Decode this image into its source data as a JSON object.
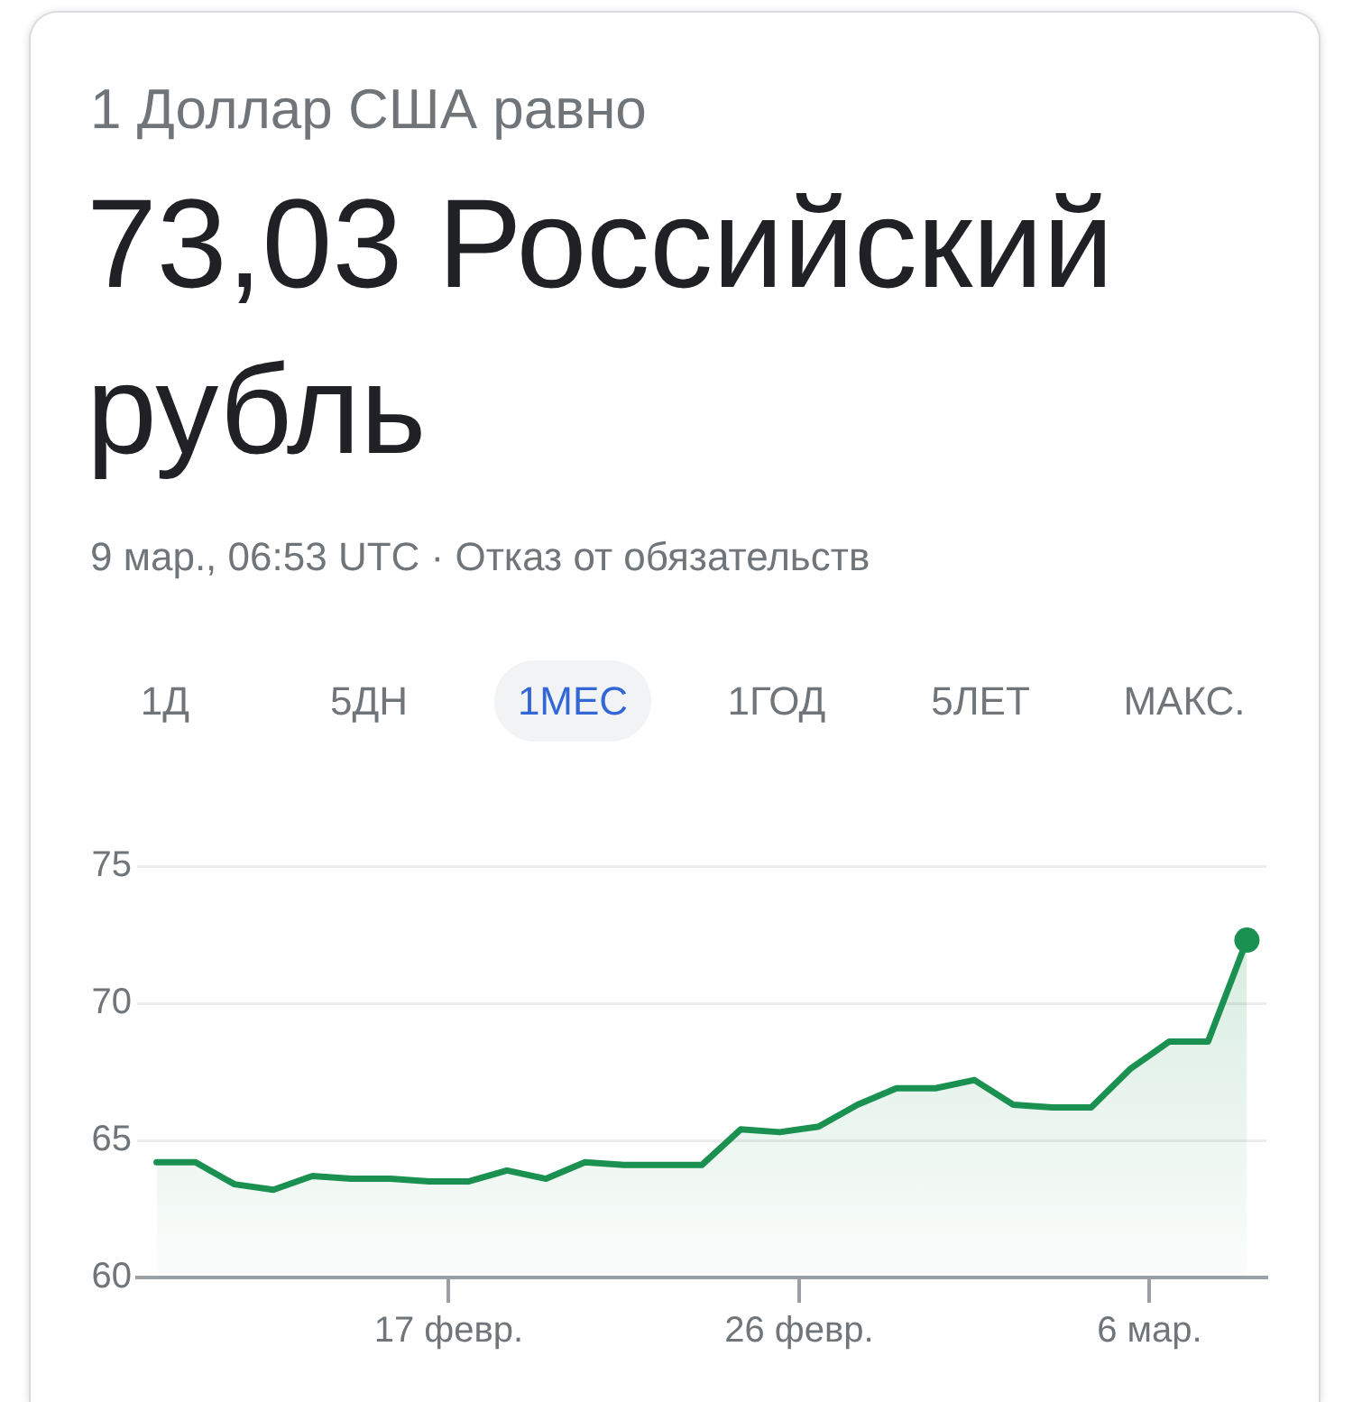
{
  "chart_data": {
    "type": "area",
    "title": "1 Доллар США равно",
    "subtitle": "73,03 Российский рубль",
    "annotations": [
      "9 мар., 06:53 UTC · Отказ от обязательств",
      "1Д",
      "5ДН",
      "1МЕС",
      "1ГОД",
      "5ЛЕТ",
      "МАКС."
    ],
    "xlim": [
      "--02-09",
      "--03-09"
    ],
    "xticks": [
      {
        "value": "--02-17",
        "label": "17 февр."
      },
      {
        "value": "--02-26",
        "label": "26 февр."
      },
      {
        "value": "--03-06",
        "label": "6 мар."
      }
    ],
    "ylim": [
      60,
      75
    ],
    "yticks": [
      60,
      65,
      70,
      75
    ],
    "grid": "y",
    "series": [
      {
        "color": "#1a9150",
        "marker": "none",
        "x": [
          "--02-09T12:00",
          "--02-10T12:00",
          "--02-11T12:00",
          "--02-12T12:00",
          "--02-13T12:00",
          "--02-14T12:00",
          "--02-15T12:00",
          "--02-16T12:00",
          "--02-17T12:00",
          "--02-18T12:00",
          "--02-19T12:00",
          "--02-20T12:00",
          "--02-21T12:00",
          "--02-22T12:00",
          "--02-23T12:00",
          "--02-24T12:00",
          "--02-25T12:00",
          "--02-26T12:00",
          "--02-27T12:00",
          "--02-28T12:00",
          "--02-29T12:00",
          "--03-01T12:00",
          "--03-02T12:00",
          "--03-03T12:00",
          "--03-04T12:00",
          "--03-05T12:00",
          "--03-06T12:00",
          "--03-07T12:00",
          "--03-08T12:00"
        ],
        "values": [
          64.2,
          64.2,
          63.4,
          63.2,
          63.7,
          63.6,
          63.6,
          63.5,
          63.5,
          63.9,
          63.6,
          64.2,
          64.1,
          64.1,
          64.1,
          65.4,
          65.3,
          65.5,
          66.3,
          66.9,
          66.9,
          67.2,
          66.3,
          66.2,
          66.2,
          67.6,
          68.6,
          68.6,
          72.3
        ]
      },
      {
        "type": "scatter",
        "color": "#1a9150",
        "marker": "circle",
        "x": [
          "--03-08T12:00"
        ],
        "values": [
          72.3
        ]
      }
    ]
  }
}
